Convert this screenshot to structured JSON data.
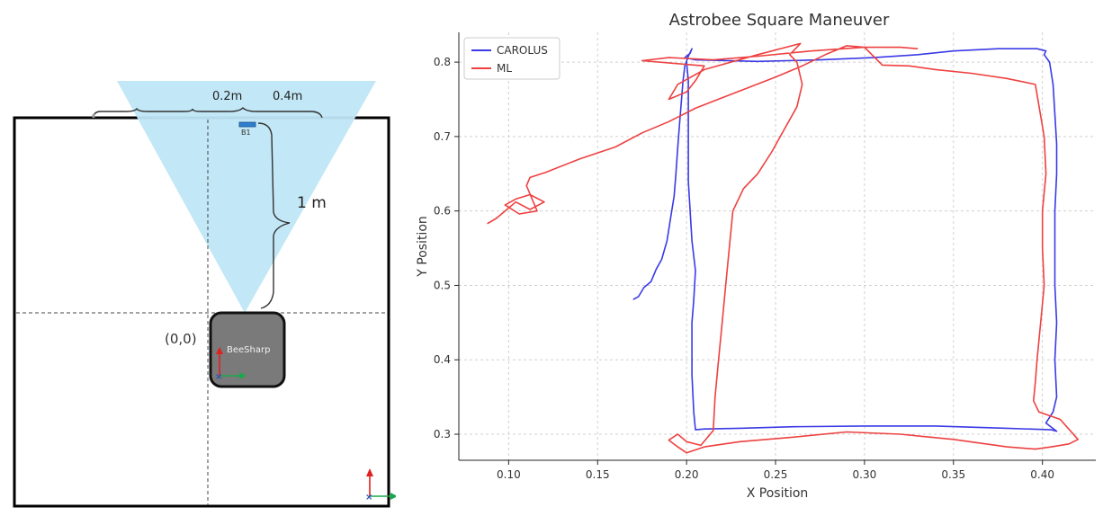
{
  "diagram": {
    "dim_small": "0.2m",
    "dim_large": "0.4m",
    "dim_vertical": "1 m",
    "beacon_label": "B1",
    "origin_label": "(0,0)",
    "robot_label": "BeeSharp",
    "colors": {
      "camera_fov": "#bfe6f5",
      "robot_body": "#7a7a7a",
      "axis_y": "#e02020",
      "axis_x": "#1ca84a",
      "axis_z": "#2a4fb8"
    }
  },
  "chart_data": {
    "type": "line",
    "title": "Astrobee Square Maneuver",
    "xlabel": "X Position",
    "ylabel": "Y Position",
    "xlim": [
      0.072,
      0.43
    ],
    "ylim": [
      0.265,
      0.84
    ],
    "xticks": [
      "0.10",
      "0.15",
      "0.20",
      "0.25",
      "0.30",
      "0.35",
      "0.40"
    ],
    "xtick_values": [
      0.1,
      0.15,
      0.2,
      0.25,
      0.3,
      0.35,
      0.4
    ],
    "yticks": [
      "0.3",
      "0.4",
      "0.5",
      "0.6",
      "0.7",
      "0.8"
    ],
    "ytick_values": [
      0.3,
      0.4,
      0.5,
      0.6,
      0.7,
      0.8
    ],
    "grid": true,
    "legend": "top-left",
    "series": [
      {
        "name": "CAROLUS",
        "color": "#3a3ae6",
        "points": [
          [
            0.17,
            0.481
          ],
          [
            0.173,
            0.485
          ],
          [
            0.176,
            0.497
          ],
          [
            0.18,
            0.505
          ],
          [
            0.183,
            0.522
          ],
          [
            0.186,
            0.535
          ],
          [
            0.189,
            0.56
          ],
          [
            0.191,
            0.59
          ],
          [
            0.193,
            0.62
          ],
          [
            0.194,
            0.65
          ],
          [
            0.195,
            0.685
          ],
          [
            0.196,
            0.715
          ],
          [
            0.197,
            0.745
          ],
          [
            0.198,
            0.775
          ],
          [
            0.199,
            0.795
          ],
          [
            0.201,
            0.808
          ],
          [
            0.203,
            0.818
          ],
          [
            0.202,
            0.812
          ],
          [
            0.199,
            0.806
          ],
          [
            0.205,
            0.803
          ],
          [
            0.24,
            0.801
          ],
          [
            0.275,
            0.803
          ],
          [
            0.305,
            0.806
          ],
          [
            0.33,
            0.81
          ],
          [
            0.35,
            0.815
          ],
          [
            0.375,
            0.818
          ],
          [
            0.397,
            0.818
          ],
          [
            0.402,
            0.815
          ],
          [
            0.401,
            0.81
          ],
          [
            0.404,
            0.8
          ],
          [
            0.406,
            0.77
          ],
          [
            0.407,
            0.73
          ],
          [
            0.408,
            0.69
          ],
          [
            0.408,
            0.65
          ],
          [
            0.407,
            0.6
          ],
          [
            0.407,
            0.55
          ],
          [
            0.407,
            0.5
          ],
          [
            0.408,
            0.45
          ],
          [
            0.407,
            0.4
          ],
          [
            0.408,
            0.35
          ],
          [
            0.406,
            0.33
          ],
          [
            0.402,
            0.315
          ],
          [
            0.408,
            0.304
          ],
          [
            0.405,
            0.306
          ],
          [
            0.38,
            0.308
          ],
          [
            0.34,
            0.311
          ],
          [
            0.3,
            0.311
          ],
          [
            0.26,
            0.31
          ],
          [
            0.23,
            0.308
          ],
          [
            0.21,
            0.307
          ],
          [
            0.205,
            0.306
          ],
          [
            0.204,
            0.33
          ],
          [
            0.203,
            0.38
          ],
          [
            0.203,
            0.42
          ],
          [
            0.203,
            0.45
          ],
          [
            0.204,
            0.48
          ],
          [
            0.205,
            0.52
          ],
          [
            0.203,
            0.56
          ],
          [
            0.202,
            0.6
          ],
          [
            0.201,
            0.64
          ],
          [
            0.201,
            0.68
          ],
          [
            0.201,
            0.72
          ],
          [
            0.201,
            0.75
          ],
          [
            0.201,
            0.775
          ],
          [
            0.2,
            0.8
          ]
        ]
      },
      {
        "name": "ML",
        "color": "#ee4040",
        "points": [
          [
            0.088,
            0.583
          ],
          [
            0.093,
            0.59
          ],
          [
            0.098,
            0.6
          ],
          [
            0.104,
            0.612
          ],
          [
            0.112,
            0.602
          ],
          [
            0.12,
            0.612
          ],
          [
            0.112,
            0.622
          ],
          [
            0.104,
            0.616
          ],
          [
            0.098,
            0.608
          ],
          [
            0.106,
            0.596
          ],
          [
            0.116,
            0.6
          ],
          [
            0.11,
            0.634
          ],
          [
            0.112,
            0.645
          ],
          [
            0.121,
            0.652
          ],
          [
            0.14,
            0.67
          ],
          [
            0.16,
            0.686
          ],
          [
            0.175,
            0.705
          ],
          [
            0.19,
            0.72
          ],
          [
            0.205,
            0.738
          ],
          [
            0.22,
            0.752
          ],
          [
            0.235,
            0.766
          ],
          [
            0.25,
            0.78
          ],
          [
            0.265,
            0.795
          ],
          [
            0.278,
            0.81
          ],
          [
            0.29,
            0.822
          ],
          [
            0.3,
            0.82
          ],
          [
            0.305,
            0.808
          ],
          [
            0.31,
            0.796
          ],
          [
            0.325,
            0.795
          ],
          [
            0.34,
            0.79
          ],
          [
            0.36,
            0.785
          ],
          [
            0.38,
            0.778
          ],
          [
            0.396,
            0.77
          ],
          [
            0.401,
            0.7
          ],
          [
            0.402,
            0.65
          ],
          [
            0.4,
            0.6
          ],
          [
            0.4,
            0.55
          ],
          [
            0.401,
            0.5
          ],
          [
            0.399,
            0.45
          ],
          [
            0.397,
            0.4
          ],
          [
            0.396,
            0.37
          ],
          [
            0.395,
            0.345
          ],
          [
            0.398,
            0.33
          ],
          [
            0.41,
            0.32
          ],
          [
            0.42,
            0.293
          ],
          [
            0.415,
            0.287
          ],
          [
            0.405,
            0.283
          ],
          [
            0.396,
            0.28
          ],
          [
            0.38,
            0.283
          ],
          [
            0.35,
            0.293
          ],
          [
            0.32,
            0.3
          ],
          [
            0.29,
            0.303
          ],
          [
            0.26,
            0.296
          ],
          [
            0.23,
            0.29
          ],
          [
            0.21,
            0.283
          ],
          [
            0.2,
            0.275
          ],
          [
            0.195,
            0.283
          ],
          [
            0.19,
            0.292
          ],
          [
            0.195,
            0.3
          ],
          [
            0.2,
            0.29
          ],
          [
            0.208,
            0.285
          ],
          [
            0.215,
            0.305
          ],
          [
            0.216,
            0.35
          ],
          [
            0.218,
            0.4
          ],
          [
            0.22,
            0.45
          ],
          [
            0.222,
            0.5
          ],
          [
            0.224,
            0.55
          ],
          [
            0.226,
            0.6
          ],
          [
            0.232,
            0.63
          ],
          [
            0.24,
            0.65
          ],
          [
            0.248,
            0.68
          ],
          [
            0.255,
            0.71
          ],
          [
            0.262,
            0.74
          ],
          [
            0.265,
            0.77
          ],
          [
            0.262,
            0.8
          ],
          [
            0.258,
            0.81
          ],
          [
            0.264,
            0.825
          ],
          [
            0.24,
            0.81
          ],
          [
            0.21,
            0.79
          ],
          [
            0.195,
            0.77
          ],
          [
            0.19,
            0.75
          ],
          [
            0.2,
            0.76
          ],
          [
            0.205,
            0.775
          ],
          [
            0.21,
            0.795
          ],
          [
            0.195,
            0.798
          ],
          [
            0.175,
            0.802
          ],
          [
            0.19,
            0.806
          ],
          [
            0.2,
            0.805
          ],
          [
            0.215,
            0.803
          ],
          [
            0.24,
            0.808
          ],
          [
            0.27,
            0.815
          ],
          [
            0.3,
            0.82
          ],
          [
            0.32,
            0.82
          ],
          [
            0.33,
            0.818
          ]
        ]
      }
    ]
  }
}
